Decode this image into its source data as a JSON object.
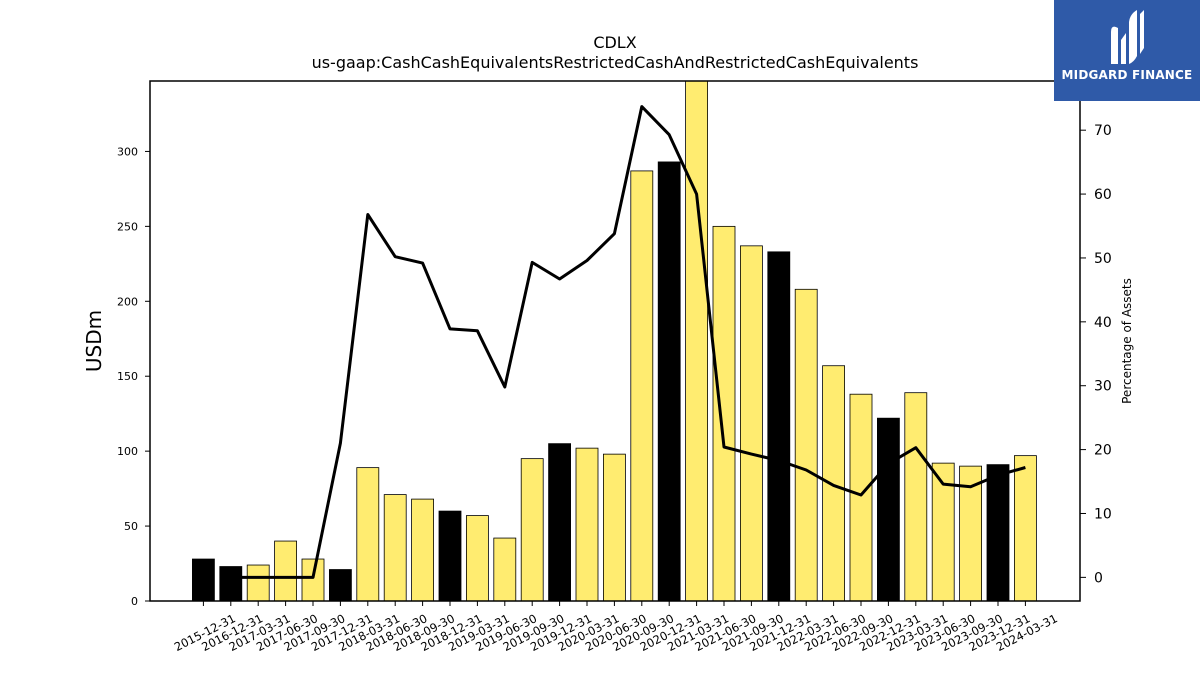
{
  "chart_data": {
    "type": "bar",
    "title": "CDLX",
    "subtitle": "us-gaap:CashCashEquivalentsRestrictedCashAndRestrictedCashEquivalents",
    "ylabel": "USDm",
    "y2label": "Percentage of Assets",
    "ylim": [
      0,
      347
    ],
    "y2lim": [
      -3.7,
      77.7
    ],
    "yticks": [
      0,
      50,
      100,
      150,
      200,
      250,
      300
    ],
    "y2ticks": [
      0,
      10,
      20,
      30,
      40,
      50,
      60,
      70
    ],
    "categories": [
      "2015-12-31",
      "2016-12-31",
      "2017-03-31",
      "2017-06-30",
      "2017-09-30",
      "2017-12-31",
      "2018-03-31",
      "2018-06-30",
      "2018-09-30",
      "2018-12-31",
      "2019-03-31",
      "2019-06-30",
      "2019-09-30",
      "2019-12-31",
      "2020-03-31",
      "2020-06-30",
      "2020-09-30",
      "2020-12-31",
      "2021-03-31",
      "2021-06-30",
      "2021-09-30",
      "2021-12-31",
      "2022-03-31",
      "2022-06-30",
      "2022-09-30",
      "2022-12-31",
      "2023-03-31",
      "2023-06-30",
      "2023-09-30",
      "2023-12-31",
      "2024-03-31"
    ],
    "series": [
      {
        "kind": "bar",
        "values": [
          28,
          23,
          24,
          40,
          28,
          21,
          89,
          71,
          68,
          60,
          57,
          42,
          95,
          105,
          102,
          98,
          287,
          293,
          347,
          250,
          237,
          233,
          208,
          157,
          138,
          122,
          139,
          92,
          90,
          91,
          97
        ],
        "annual": [
          true,
          true,
          false,
          false,
          false,
          true,
          false,
          false,
          false,
          true,
          false,
          false,
          false,
          true,
          false,
          false,
          false,
          true,
          false,
          false,
          false,
          true,
          false,
          false,
          false,
          true,
          false,
          false,
          false,
          true,
          false
        ]
      },
      {
        "kind": "line",
        "axis": "right",
        "values": [
          null,
          0.0,
          0.0,
          0.0,
          0.0,
          21.0,
          56.8,
          50.2,
          49.2,
          38.9,
          38.6,
          29.8,
          49.3,
          46.7,
          49.6,
          53.8,
          73.7,
          69.3,
          60.0,
          20.4,
          19.3,
          18.3,
          16.8,
          14.4,
          12.9,
          17.8,
          20.3,
          14.6,
          14.2,
          16.0,
          17.2
        ]
      }
    ],
    "colors": {
      "annual_bar": "#000000",
      "quarter_bar": "#ffec70",
      "line": "#000000",
      "logo_bg": "#2f5aa8"
    },
    "grid": false
  },
  "logo": {
    "text": "MIDGARD FINANCE",
    "icon": "midgard-logo-icon"
  }
}
